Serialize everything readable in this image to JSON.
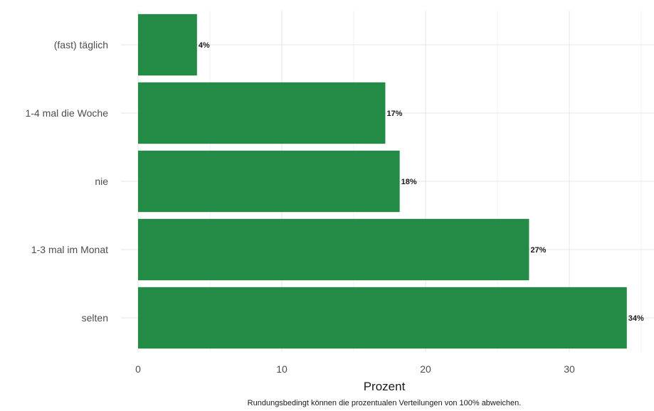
{
  "chart_data": {
    "type": "bar",
    "orientation": "horizontal",
    "categories": [
      "(fast) täglich",
      "1-4 mal die Woche",
      "nie",
      "1-3 mal im Monat",
      "selten"
    ],
    "values": [
      4.1,
      17.2,
      18.2,
      27.2,
      34.0
    ],
    "value_labels": [
      "4%",
      "17%",
      "18%",
      "27%",
      "34%"
    ],
    "xlabel": "Prozent",
    "ylabel": "",
    "xlim": [
      0,
      35.5
    ],
    "xticks": [
      0,
      10,
      20,
      30
    ],
    "xtick_labels": [
      "0",
      "10",
      "20",
      "30"
    ],
    "bar_color": "#238b45",
    "grid": true,
    "caption": "Rundungsbedingt können die prozentualen Verteilungen von 100% abweichen."
  }
}
